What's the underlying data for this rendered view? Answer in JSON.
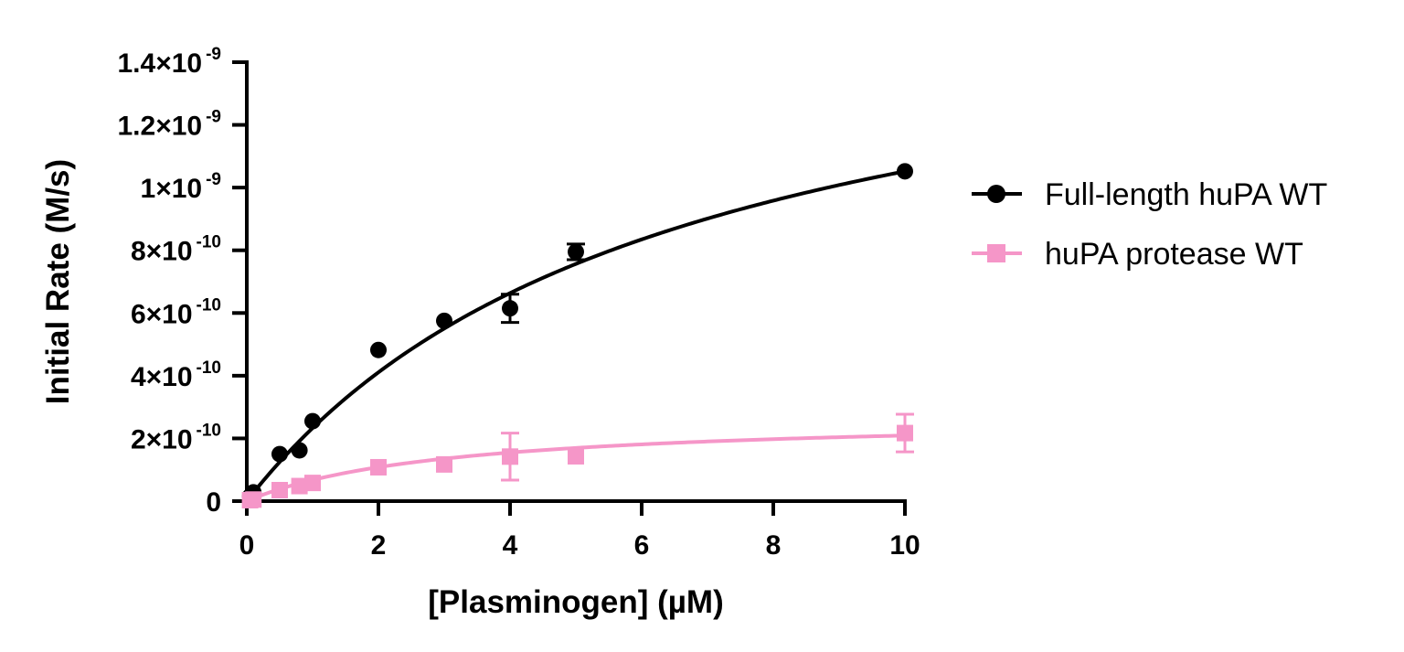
{
  "chart_data": {
    "type": "scatter",
    "title": "",
    "xlabel": "[Plasminogen] (µM)",
    "ylabel": "Initial Rate (M/s)",
    "xlim": [
      0,
      10
    ],
    "ylim": [
      0,
      1.4e-09
    ],
    "x_ticks": [
      0,
      2,
      4,
      6,
      8,
      10
    ],
    "x_tick_labels": [
      "0",
      "2",
      "4",
      "6",
      "8",
      "10"
    ],
    "y_ticks": [
      0,
      2e-10,
      4e-10,
      6e-10,
      8e-10,
      1e-09,
      1.2e-09,
      1.4e-09
    ],
    "y_tick_labels": [
      {
        "mantissa": "0",
        "exp": ""
      },
      {
        "mantissa": "2×10",
        "exp": "-10"
      },
      {
        "mantissa": "4×10",
        "exp": "-10"
      },
      {
        "mantissa": "6×10",
        "exp": "-10"
      },
      {
        "mantissa": "8×10",
        "exp": "-10"
      },
      {
        "mantissa": "1×10",
        "exp": "-9"
      },
      {
        "mantissa": "1.2×10",
        "exp": "-9"
      },
      {
        "mantissa": "1.4×10",
        "exp": "-9"
      }
    ],
    "grid": false,
    "legend_position": "right",
    "series": [
      {
        "name": "Full-length huPA WT",
        "color": "#000000",
        "marker": "circle",
        "x": [
          0.05,
          0.1,
          0.5,
          0.8,
          1,
          2,
          3,
          4,
          5,
          10
        ],
        "y": [
          1.5e-11,
          2.8e-11,
          1.5e-10,
          1.62e-10,
          2.55e-10,
          4.82e-10,
          5.75e-10,
          6.15e-10,
          7.95e-10,
          1.052e-09
        ],
        "err": [
          0,
          0,
          0,
          0,
          0,
          0,
          0,
          4.5e-11,
          2.5e-11,
          0
        ],
        "fit_curve": {
          "model": "michaelis-menten",
          "vmax": 1.725e-09,
          "km": 6.4
        }
      },
      {
        "name": "huPA protease WT",
        "color": "#f596c8",
        "marker": "square",
        "x": [
          0.05,
          0.1,
          0.5,
          0.8,
          1,
          2,
          3,
          4,
          5,
          10
        ],
        "y": [
          3e-12,
          5e-12,
          3.5e-11,
          4.8e-11,
          5.8e-11,
          1.08e-10,
          1.17e-10,
          1.42e-10,
          1.43e-10,
          2.17e-10
        ],
        "err": [
          0,
          0,
          0,
          0,
          0,
          0,
          0,
          7.5e-11,
          0,
          6e-11
        ],
        "fit_curve": {
          "model": "michaelis-menten",
          "vmax": 2.73e-10,
          "km": 3.05
        }
      }
    ]
  }
}
